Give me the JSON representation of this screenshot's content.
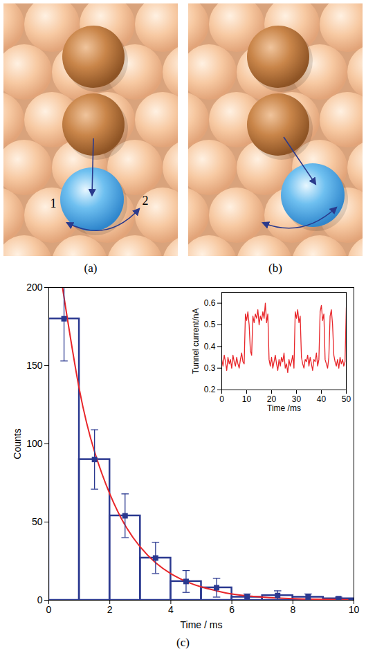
{
  "diagrams": [
    {
      "label": "(a)",
      "site_labels": [
        "1",
        "2"
      ]
    },
    {
      "label": "(b)"
    }
  ],
  "chart_data": [
    {
      "type": "histogram",
      "label": "(c)",
      "bins": [
        0,
        1,
        2,
        3,
        4,
        5,
        6,
        7,
        8,
        9,
        10
      ],
      "values": [
        180,
        90,
        54,
        27,
        12,
        8,
        2,
        3,
        2,
        1
      ],
      "errors": [
        27,
        19,
        14,
        10,
        7,
        6,
        2,
        3,
        2,
        1
      ],
      "color": "#2b3990",
      "marker": "square",
      "fit": {
        "x": [
          0.45,
          1,
          1.5,
          2,
          2.5,
          3,
          3.5,
          4,
          4.5,
          5,
          5.5,
          6,
          7,
          8,
          9,
          9.8
        ],
        "values": [
          200,
          135,
          95,
          68,
          48,
          34,
          24,
          17,
          12,
          8.5,
          6,
          4,
          2,
          1,
          0.5,
          0.3
        ],
        "color": "#e8262a"
      },
      "xlabel": "Time / ms",
      "ylabel": "Counts",
      "xlim": [
        0,
        10
      ],
      "ylim": [
        0,
        200
      ],
      "xticks": [
        0,
        2,
        4,
        6,
        8,
        10
      ],
      "yticks": [
        0,
        50,
        100,
        150,
        200
      ]
    },
    {
      "type": "line",
      "x": [
        0,
        0.5,
        1,
        1.5,
        2,
        2.5,
        3,
        3.5,
        4,
        4.5,
        5,
        5.5,
        6,
        6.5,
        7,
        7.5,
        8,
        8.5,
        9,
        9.5,
        10,
        10.5,
        11,
        11.5,
        12,
        12.5,
        13,
        13.5,
        14,
        14.5,
        15,
        15.5,
        16,
        16.5,
        17,
        17.5,
        18,
        18.5,
        19,
        19.5,
        20,
        20.5,
        21,
        21.5,
        22,
        22.5,
        23,
        23.5,
        24,
        24.5,
        25,
        25.5,
        26,
        26.5,
        27,
        27.5,
        28,
        28.5,
        29,
        29.5,
        30,
        30.5,
        31,
        31.5,
        32,
        32.5,
        33,
        33.5,
        34,
        34.5,
        35,
        35.5,
        36,
        36.5,
        37,
        37.5,
        38,
        38.5,
        39,
        39.5,
        40,
        40.5,
        41,
        41.5,
        42,
        42.5,
        43,
        43.5,
        44,
        44.5,
        45,
        45.5,
        46,
        46.5,
        47,
        47.5,
        48,
        48.5,
        49,
        49.5,
        50
      ],
      "values": [
        0.34,
        0.31,
        0.36,
        0.33,
        0.29,
        0.35,
        0.32,
        0.34,
        0.3,
        0.36,
        0.33,
        0.31,
        0.35,
        0.32,
        0.3,
        0.34,
        0.37,
        0.33,
        0.32,
        0.55,
        0.52,
        0.56,
        0.5,
        0.38,
        0.36,
        0.54,
        0.51,
        0.55,
        0.53,
        0.57,
        0.5,
        0.54,
        0.52,
        0.56,
        0.53,
        0.6,
        0.51,
        0.55,
        0.34,
        0.31,
        0.35,
        0.3,
        0.33,
        0.36,
        0.32,
        0.29,
        0.34,
        0.31,
        0.35,
        0.33,
        0.37,
        0.3,
        0.32,
        0.28,
        0.34,
        0.31,
        0.33,
        0.36,
        0.3,
        0.56,
        0.53,
        0.57,
        0.51,
        0.54,
        0.35,
        0.32,
        0.3,
        0.34,
        0.33,
        0.36,
        0.31,
        0.35,
        0.32,
        0.29,
        0.34,
        0.33,
        0.37,
        0.31,
        0.34,
        0.56,
        0.59,
        0.52,
        0.55,
        0.34,
        0.32,
        0.3,
        0.35,
        0.54,
        0.57,
        0.5,
        0.36,
        0.33,
        0.31,
        0.34,
        0.3,
        0.35,
        0.32,
        0.34,
        0.31,
        0.33,
        0.58
      ],
      "color": "#e8262a",
      "xlabel": "Time /ms",
      "ylabel": "Tunnel current/nA",
      "xlim": [
        0,
        50
      ],
      "ylim": [
        0.2,
        0.65
      ],
      "xticks": [
        0,
        10,
        20,
        30,
        40,
        50
      ],
      "yticks": [
        0.2,
        0.3,
        0.4,
        0.5,
        0.6
      ]
    }
  ]
}
